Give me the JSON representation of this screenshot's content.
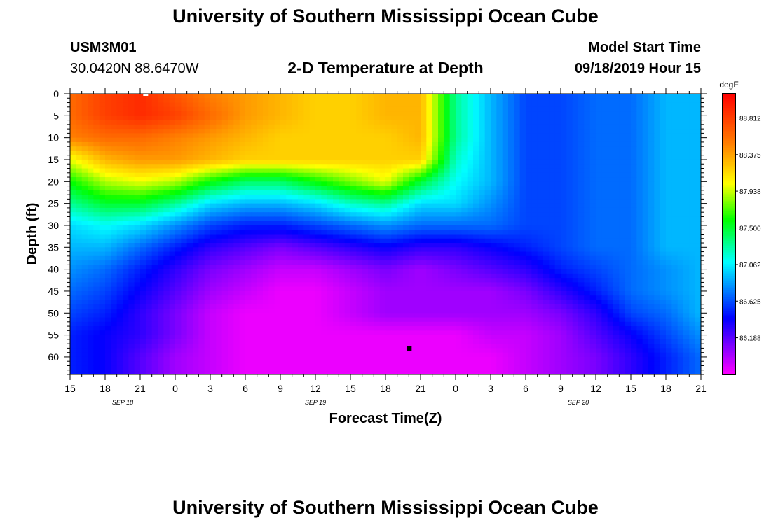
{
  "page": {
    "top_title": "University of Southern Mississippi Ocean Cube",
    "bottom_title": "University of Southern Mississippi Ocean Cube",
    "station_id": "USM3M01",
    "location": "30.0420N 88.6470W",
    "plot_title": "2-D Temperature at Depth",
    "model_start_label": "Model Start Time",
    "model_start_value": "09/18/2019 Hour 15"
  },
  "chart_data": {
    "type": "heatmap",
    "title": "2-D Temperature at Depth",
    "xlabel": "Forecast Time(Z)",
    "ylabel": "Depth (ft)",
    "xlim": [
      0,
      54
    ],
    "ylim": [
      0,
      64
    ],
    "x_tick_labels": [
      "15",
      "18",
      "21",
      "0",
      "3",
      "6",
      "9",
      "12",
      "15",
      "18",
      "21",
      "0",
      "3",
      "6",
      "9",
      "12",
      "15",
      "18",
      "21"
    ],
    "x_tick_hours": [
      0,
      3,
      6,
      9,
      12,
      15,
      18,
      21,
      24,
      27,
      30,
      33,
      36,
      39,
      42,
      45,
      48,
      51,
      54
    ],
    "date_labels": [
      {
        "text": "SEP 18",
        "hour": 4.5
      },
      {
        "text": "SEP 19",
        "hour": 21
      },
      {
        "text": "SEP 20",
        "hour": 43.5
      }
    ],
    "y_ticks": [
      0,
      5,
      10,
      15,
      20,
      25,
      30,
      35,
      40,
      45,
      50,
      55,
      60
    ],
    "colorbar": {
      "unit": "degF",
      "min": 85.75,
      "max": 89.1,
      "labels": [
        "88.812",
        "88.375",
        "87.938",
        "87.500",
        "87.062",
        "86.625",
        "86.188"
      ]
    },
    "x_hours": [
      0,
      3,
      6,
      9,
      12,
      15,
      18,
      21,
      24,
      27,
      30,
      33,
      36,
      39,
      42,
      45,
      48,
      51,
      54
    ],
    "depths_ft": [
      0,
      5,
      10,
      15,
      20,
      25,
      30,
      35,
      40,
      45,
      50,
      55,
      60,
      64
    ],
    "temperature_degF": [
      [
        88.6,
        88.8,
        88.9,
        88.7,
        88.5,
        88.4,
        88.3,
        88.2,
        88.2,
        88.3,
        88.3,
        87.3,
        86.9,
        86.6,
        86.6,
        86.7,
        86.7,
        86.9,
        86.9
      ],
      [
        88.6,
        88.8,
        88.9,
        88.8,
        88.6,
        88.4,
        88.3,
        88.2,
        88.2,
        88.3,
        88.3,
        87.3,
        86.9,
        86.6,
        86.6,
        86.7,
        86.7,
        86.9,
        86.9
      ],
      [
        88.5,
        88.6,
        88.6,
        88.5,
        88.4,
        88.3,
        88.2,
        88.2,
        88.2,
        88.2,
        88.3,
        87.3,
        86.9,
        86.6,
        86.6,
        86.7,
        86.7,
        86.9,
        86.9
      ],
      [
        88.0,
        88.3,
        88.4,
        88.4,
        88.3,
        88.2,
        88.2,
        88.2,
        88.2,
        88.2,
        88.2,
        87.2,
        86.9,
        86.6,
        86.6,
        86.7,
        86.7,
        86.9,
        86.9
      ],
      [
        87.6,
        87.9,
        88.0,
        87.9,
        87.6,
        87.4,
        87.4,
        87.6,
        87.8,
        88.0,
        87.5,
        87.1,
        86.9,
        86.6,
        86.6,
        86.7,
        86.7,
        86.9,
        86.9
      ],
      [
        87.3,
        87.5,
        87.5,
        87.3,
        87.0,
        86.9,
        86.9,
        87.0,
        87.2,
        87.3,
        87.0,
        87.0,
        86.8,
        86.6,
        86.6,
        86.7,
        86.7,
        86.9,
        86.9
      ],
      [
        87.0,
        87.1,
        87.0,
        86.8,
        86.6,
        86.5,
        86.5,
        86.6,
        86.7,
        86.8,
        86.7,
        86.7,
        86.7,
        86.6,
        86.6,
        86.7,
        86.7,
        86.9,
        86.9
      ],
      [
        86.9,
        86.9,
        86.7,
        86.5,
        86.3,
        86.2,
        86.1,
        86.2,
        86.3,
        86.4,
        86.3,
        86.3,
        86.4,
        86.5,
        86.6,
        86.7,
        86.7,
        86.9,
        86.9
      ],
      [
        86.8,
        86.7,
        86.5,
        86.3,
        86.1,
        86.0,
        85.9,
        85.9,
        86.0,
        86.1,
        86.0,
        86.1,
        86.2,
        86.3,
        86.5,
        86.6,
        86.7,
        86.8,
        86.9
      ],
      [
        86.7,
        86.6,
        86.4,
        86.2,
        86.0,
        85.9,
        85.8,
        85.8,
        85.9,
        86.0,
        86.0,
        86.0,
        86.0,
        86.1,
        86.3,
        86.5,
        86.7,
        86.8,
        86.9
      ],
      [
        86.6,
        86.5,
        86.3,
        86.1,
        85.9,
        85.8,
        85.8,
        85.8,
        85.9,
        86.0,
        86.0,
        86.0,
        86.0,
        86.0,
        86.1,
        86.3,
        86.6,
        86.7,
        86.9
      ],
      [
        86.5,
        86.4,
        86.3,
        86.1,
        85.9,
        85.8,
        85.8,
        85.8,
        85.8,
        85.8,
        85.8,
        85.8,
        85.9,
        85.9,
        86.0,
        86.2,
        86.4,
        86.6,
        86.8
      ],
      [
        86.5,
        86.4,
        86.2,
        86.0,
        85.9,
        85.8,
        85.8,
        85.8,
        85.8,
        85.8,
        85.8,
        85.8,
        85.8,
        85.9,
        86.0,
        86.1,
        86.3,
        86.5,
        86.7
      ],
      [
        86.5,
        86.4,
        86.2,
        86.0,
        85.9,
        85.8,
        85.8,
        85.8,
        85.8,
        85.8,
        85.8,
        85.8,
        85.8,
        85.9,
        86.0,
        86.1,
        86.3,
        86.5,
        86.7
      ]
    ],
    "markers": [
      {
        "name": "surface-marker",
        "hour": 6.5,
        "depth": 0
      },
      {
        "name": "min-temp-marker",
        "hour": 29.0,
        "depth": 58
      }
    ]
  }
}
